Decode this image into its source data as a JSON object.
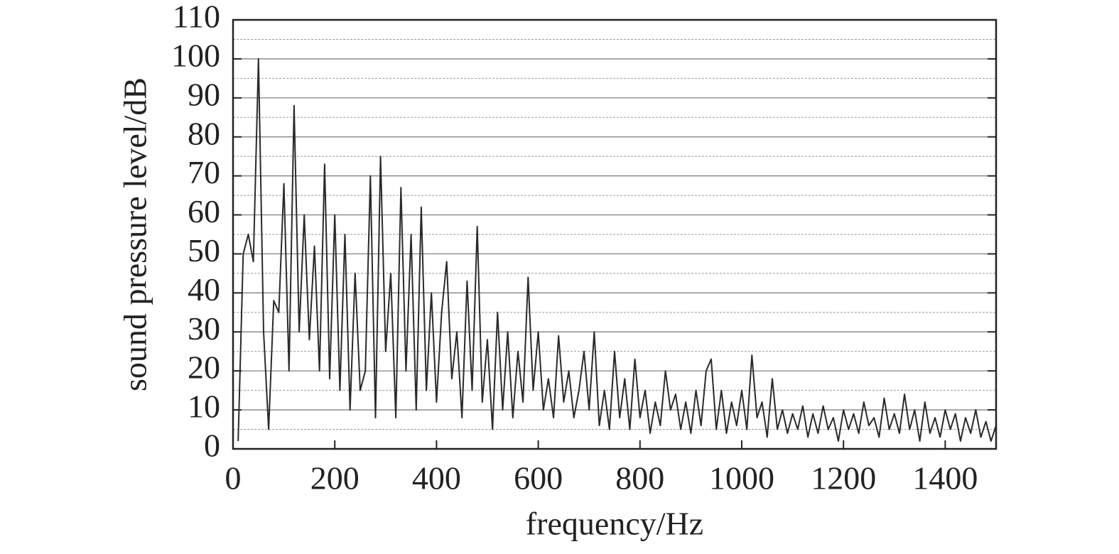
{
  "chart_data": {
    "type": "line",
    "xlabel": "frequency/Hz",
    "ylabel": "sound pressure level/dB",
    "x": [
      10,
      20,
      30,
      40,
      50,
      60,
      70,
      80,
      90,
      100,
      110,
      120,
      130,
      140,
      150,
      160,
      170,
      180,
      190,
      200,
      210,
      220,
      230,
      240,
      250,
      260,
      270,
      280,
      290,
      300,
      310,
      320,
      330,
      340,
      350,
      360,
      370,
      380,
      390,
      400,
      410,
      420,
      430,
      440,
      450,
      460,
      470,
      480,
      490,
      500,
      510,
      520,
      530,
      540,
      550,
      560,
      570,
      580,
      590,
      600,
      610,
      620,
      630,
      640,
      650,
      660,
      670,
      680,
      690,
      700,
      710,
      720,
      730,
      740,
      750,
      760,
      770,
      780,
      790,
      800,
      810,
      820,
      830,
      840,
      850,
      860,
      870,
      880,
      890,
      900,
      910,
      920,
      930,
      940,
      950,
      960,
      970,
      980,
      990,
      1000,
      1010,
      1020,
      1030,
      1040,
      1050,
      1060,
      1070,
      1080,
      1090,
      1100,
      1110,
      1120,
      1130,
      1140,
      1150,
      1160,
      1170,
      1180,
      1190,
      1200,
      1210,
      1220,
      1230,
      1240,
      1250,
      1260,
      1270,
      1280,
      1290,
      1300,
      1310,
      1320,
      1330,
      1340,
      1350,
      1360,
      1370,
      1380,
      1390,
      1400,
      1410,
      1420,
      1430,
      1440,
      1450,
      1460,
      1470,
      1480,
      1490,
      1500
    ],
    "series": [
      {
        "color": "#2a2a2a",
        "values": [
          2,
          50,
          55,
          48,
          100,
          30,
          5,
          38,
          35,
          68,
          20,
          88,
          30,
          60,
          28,
          52,
          20,
          73,
          18,
          60,
          15,
          55,
          10,
          45,
          15,
          20,
          70,
          8,
          75,
          25,
          45,
          8,
          67,
          20,
          55,
          10,
          62,
          15,
          40,
          12,
          35,
          48,
          18,
          30,
          8,
          43,
          15,
          57,
          12,
          28,
          5,
          35,
          10,
          30,
          8,
          25,
          12,
          44,
          15,
          30,
          10,
          18,
          8,
          29,
          12,
          20,
          8,
          15,
          25,
          10,
          30,
          6,
          15,
          5,
          25,
          8,
          18,
          5,
          23,
          8,
          15,
          4,
          12,
          6,
          20,
          10,
          14,
          5,
          12,
          4,
          15,
          6,
          20,
          23,
          5,
          15,
          4,
          12,
          6,
          15,
          5,
          24,
          8,
          12,
          3,
          18,
          5,
          10,
          4,
          9,
          5,
          11,
          3,
          9,
          4,
          11,
          5,
          8,
          2,
          10,
          5,
          9,
          4,
          12,
          6,
          8,
          3,
          13,
          5,
          9,
          4,
          14,
          5,
          10,
          2,
          12,
          4,
          8,
          3,
          10,
          5,
          9,
          2,
          8,
          4,
          10,
          3,
          7,
          2,
          6
        ]
      }
    ],
    "xlim": [
      0,
      1500
    ],
    "xticks": [
      0,
      200,
      400,
      600,
      800,
      1000,
      1200,
      1400
    ],
    "ylim": [
      0,
      110
    ],
    "yticks": [
      0,
      10,
      20,
      30,
      40,
      50,
      60,
      70,
      80,
      90,
      100,
      110
    ],
    "minor_yticks": [
      5,
      15,
      25,
      35,
      45,
      55,
      65,
      75,
      85,
      95,
      105
    ],
    "grid": true
  }
}
